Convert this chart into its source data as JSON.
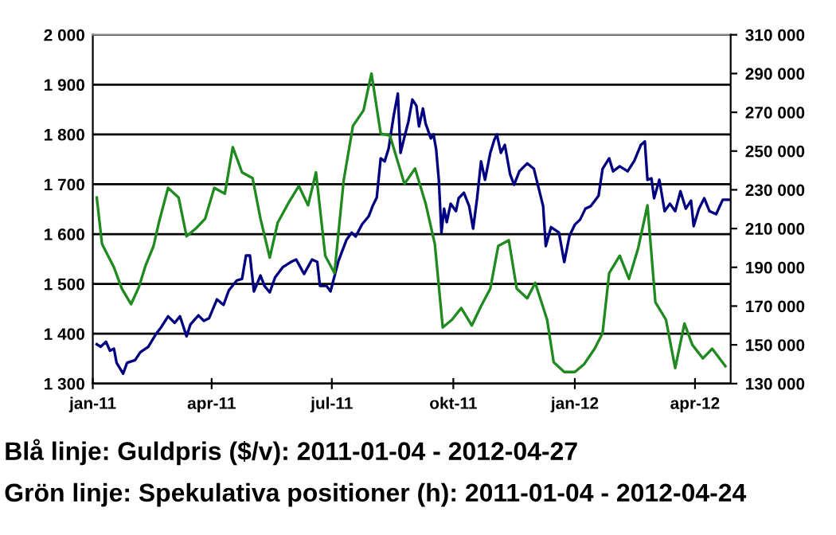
{
  "chart_data": {
    "type": "line",
    "xlim": [
      "2011-01-01",
      "2012-04-28"
    ],
    "xticks": [
      {
        "value": "2011-01-01",
        "label": "jan-11"
      },
      {
        "value": "2011-04-01",
        "label": "apr-11"
      },
      {
        "value": "2011-07-01",
        "label": "jul-11"
      },
      {
        "value": "2011-10-01",
        "label": "okt-11"
      },
      {
        "value": "2012-01-01",
        "label": "jan-12"
      },
      {
        "value": "2012-04-01",
        "label": "apr-12"
      }
    ],
    "ylim": [
      1300,
      2000
    ],
    "yticks": [
      {
        "value": 1300,
        "label": "1 300"
      },
      {
        "value": 1400,
        "label": "1 400"
      },
      {
        "value": 1500,
        "label": "1 500"
      },
      {
        "value": 1600,
        "label": "1 600"
      },
      {
        "value": 1700,
        "label": "1 700"
      },
      {
        "value": 1800,
        "label": "1 800"
      },
      {
        "value": 1900,
        "label": "1 900"
      },
      {
        "value": 2000,
        "label": "2 000"
      }
    ],
    "y2lim": [
      130000,
      310000
    ],
    "y2ticks": [
      {
        "value": 130000,
        "label": "130 000"
      },
      {
        "value": 150000,
        "label": "150 000"
      },
      {
        "value": 170000,
        "label": "170 000"
      },
      {
        "value": 190000,
        "label": "190 000"
      },
      {
        "value": 210000,
        "label": "210 000"
      },
      {
        "value": 230000,
        "label": "230 000"
      },
      {
        "value": 250000,
        "label": "250 000"
      },
      {
        "value": 270000,
        "label": "270 000"
      },
      {
        "value": 290000,
        "label": "290 000"
      },
      {
        "value": 310000,
        "label": "310 000"
      }
    ],
    "grid": "y",
    "legend": false,
    "marker": "none",
    "line_style": "solid",
    "annotations": [
      "Blå linje: Guldpris ($/v): 2011-01-04 - 2012-04-27",
      "Grön linje: Spekulativa positioner (h): 2011-01-04 - 2012-04-24"
    ],
    "series": [
      {
        "color": "#000080",
        "x": [
          "2011-01-04",
          "2011-01-07",
          "2011-01-11",
          "2011-01-14",
          "2011-01-17",
          "2011-01-19",
          "2011-01-24",
          "2011-01-27",
          "2011-02-02",
          "2011-02-06",
          "2011-02-12",
          "2011-02-18",
          "2011-02-22",
          "2011-02-27",
          "2011-03-04",
          "2011-03-08",
          "2011-03-13",
          "2011-03-16",
          "2011-03-22",
          "2011-03-26",
          "2011-03-30",
          "2011-04-05",
          "2011-04-10",
          "2011-04-14",
          "2011-04-20",
          "2011-04-24",
          "2011-04-27",
          "2011-04-30",
          "2011-05-03",
          "2011-05-08",
          "2011-05-11",
          "2011-05-15",
          "2011-05-19",
          "2011-05-25",
          "2011-05-31",
          "2011-06-04",
          "2011-06-10",
          "2011-06-16",
          "2011-06-20",
          "2011-06-22",
          "2011-06-27",
          "2011-06-30",
          "2011-07-06",
          "2011-07-12",
          "2011-07-16",
          "2011-07-19",
          "2011-07-24",
          "2011-07-29",
          "2011-08-01",
          "2011-08-04",
          "2011-08-07",
          "2011-08-10",
          "2011-08-13",
          "2011-08-17",
          "2011-08-20",
          "2011-08-22",
          "2011-08-25",
          "2011-08-28",
          "2011-08-31",
          "2011-09-03",
          "2011-09-05",
          "2011-09-08",
          "2011-09-10",
          "2011-09-14",
          "2011-09-16",
          "2011-09-18",
          "2011-09-20",
          "2011-09-22",
          "2011-09-24",
          "2011-09-26",
          "2011-09-29",
          "2011-10-03",
          "2011-10-05",
          "2011-10-09",
          "2011-10-13",
          "2011-10-16",
          "2011-10-19",
          "2011-10-22",
          "2011-10-25",
          "2011-10-29",
          "2011-11-01",
          "2011-11-03",
          "2011-11-06",
          "2011-11-09",
          "2011-11-13",
          "2011-11-16",
          "2011-11-20",
          "2011-11-26",
          "2011-12-01",
          "2011-12-05",
          "2011-12-08",
          "2011-12-10",
          "2011-12-14",
          "2011-12-20",
          "2011-12-24",
          "2011-12-28",
          "2012-01-01",
          "2012-01-05",
          "2012-01-09",
          "2012-01-13",
          "2012-01-19",
          "2012-01-22",
          "2012-01-27",
          "2012-01-30",
          "2012-02-04",
          "2012-02-10",
          "2012-02-15",
          "2012-02-20",
          "2012-02-23",
          "2012-02-25",
          "2012-02-28",
          "2012-03-01",
          "2012-03-05",
          "2012-03-09",
          "2012-03-13",
          "2012-03-17",
          "2012-03-21",
          "2012-03-25",
          "2012-03-29",
          "2012-03-31",
          "2012-04-04",
          "2012-04-08",
          "2012-04-12",
          "2012-04-17",
          "2012-04-22",
          "2012-04-27"
        ],
        "values": [
          1379,
          1374,
          1384,
          1366,
          1370,
          1342,
          1320,
          1342,
          1347,
          1363,
          1374,
          1400,
          1414,
          1435,
          1422,
          1435,
          1395,
          1419,
          1437,
          1426,
          1431,
          1469,
          1458,
          1487,
          1507,
          1510,
          1557,
          1557,
          1485,
          1517,
          1496,
          1483,
          1513,
          1534,
          1544,
          1549,
          1520,
          1549,
          1544,
          1496,
          1496,
          1485,
          1546,
          1588,
          1603,
          1595,
          1620,
          1636,
          1657,
          1673,
          1752,
          1746,
          1772,
          1840,
          1882,
          1763,
          1795,
          1826,
          1870,
          1858,
          1816,
          1852,
          1822,
          1792,
          1800,
          1770,
          1709,
          1603,
          1651,
          1624,
          1661,
          1646,
          1672,
          1683,
          1656,
          1611,
          1672,
          1746,
          1709,
          1763,
          1789,
          1800,
          1763,
          1779,
          1720,
          1699,
          1726,
          1742,
          1731,
          1688,
          1656,
          1576,
          1614,
          1603,
          1544,
          1597,
          1619,
          1629,
          1651,
          1656,
          1677,
          1731,
          1752,
          1726,
          1736,
          1726,
          1747,
          1779,
          1786,
          1709,
          1712,
          1672,
          1709,
          1646,
          1661,
          1646,
          1686,
          1651,
          1667,
          1616,
          1651,
          1672,
          1646,
          1640,
          1669,
          1669
        ]
      },
      {
        "color": "#1f8a1f",
        "axis": "y2",
        "x": [
          "2011-01-04",
          "2011-01-08",
          "2011-01-17",
          "2011-01-23",
          "2011-01-30",
          "2011-02-05",
          "2011-02-10",
          "2011-02-16",
          "2011-02-20",
          "2011-02-27",
          "2011-03-07",
          "2011-03-13",
          "2011-03-20",
          "2011-03-27",
          "2011-04-03",
          "2011-04-11",
          "2011-04-17",
          "2011-04-24",
          "2011-05-02",
          "2011-05-08",
          "2011-05-15",
          "2011-05-21",
          "2011-05-29",
          "2011-06-06",
          "2011-06-13",
          "2011-06-19",
          "2011-06-26",
          "2011-07-03",
          "2011-07-10",
          "2011-07-17",
          "2011-07-25",
          "2011-07-31",
          "2011-08-07",
          "2011-08-14",
          "2011-08-25",
          "2011-09-02",
          "2011-09-10",
          "2011-09-17",
          "2011-09-23",
          "2011-09-30",
          "2011-10-07",
          "2011-10-15",
          "2011-10-22",
          "2011-10-29",
          "2011-11-04",
          "2011-11-12",
          "2011-11-18",
          "2011-11-26",
          "2011-12-02",
          "2011-12-11",
          "2011-12-16",
          "2011-12-24",
          "2012-01-01",
          "2012-01-08",
          "2012-01-16",
          "2012-01-22",
          "2012-01-27",
          "2012-02-04",
          "2012-02-11",
          "2012-02-18",
          "2012-02-25",
          "2012-03-02",
          "2012-03-10",
          "2012-03-17",
          "2012-03-24",
          "2012-03-30",
          "2012-04-07",
          "2012-04-14",
          "2012-04-24"
        ],
        "values": [
          226000,
          202000,
          190000,
          179000,
          171000,
          180000,
          191000,
          201000,
          213000,
          231000,
          226000,
          206000,
          210000,
          215000,
          231000,
          228000,
          252000,
          239000,
          236000,
          215000,
          195000,
          213000,
          223000,
          232000,
          222000,
          239000,
          196000,
          187000,
          235000,
          263000,
          271000,
          290000,
          259000,
          258000,
          233000,
          241000,
          223000,
          202000,
          159000,
          163000,
          169000,
          160000,
          170000,
          179000,
          201000,
          204000,
          179000,
          174000,
          182000,
          163000,
          141000,
          136000,
          136000,
          140000,
          148000,
          156000,
          187000,
          196000,
          184000,
          200000,
          222000,
          172000,
          163000,
          138000,
          161000,
          150000,
          143000,
          148000,
          139000
        ]
      }
    ]
  }
}
